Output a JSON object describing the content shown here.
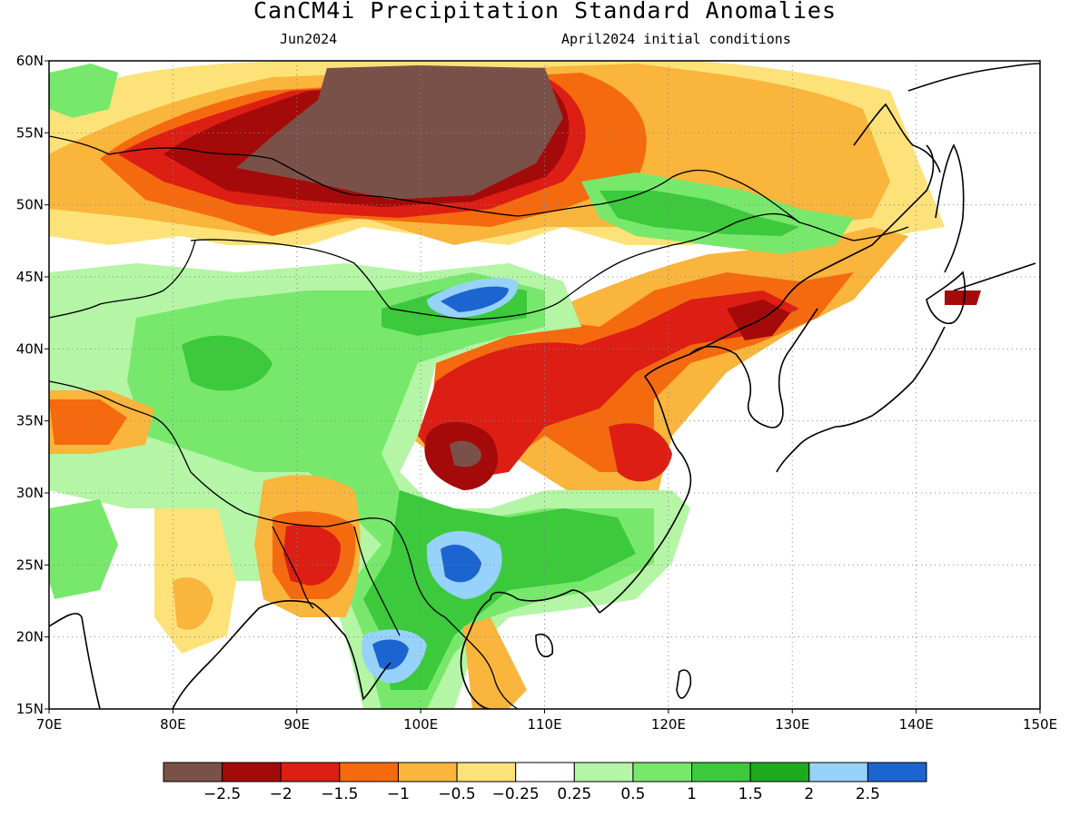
{
  "title": "CanCM4i Precipitation Standard Anomalies",
  "subtitle_left": "Jun2024",
  "subtitle_right": "April2024 initial conditions",
  "axes": {
    "lon_labels": [
      "70E",
      "80E",
      "90E",
      "100E",
      "110E",
      "120E",
      "130E",
      "140E",
      "150E"
    ],
    "lat_labels": [
      "15N",
      "20N",
      "25N",
      "30N",
      "35N",
      "40N",
      "45N",
      "50N",
      "55N",
      "60N"
    ],
    "lon_range": [
      70,
      150
    ],
    "lat_range": [
      15,
      60
    ],
    "grid": "dotted"
  },
  "colorbar": {
    "colors": [
      "#7a5148",
      "#a50a0a",
      "#dc1e14",
      "#f56a0f",
      "#f9b53c",
      "#fde27a",
      "#ffffff",
      "#b4f5a6",
      "#78e86c",
      "#3cc93c",
      "#1eaa1e",
      "#96d2fa",
      "#1c64d0"
    ],
    "labels": [
      "−2.5",
      "−2",
      "−1.5",
      "−1",
      "−0.5",
      "−0.25",
      "0.25",
      "0.5",
      "1",
      "1.5",
      "2",
      "2.5"
    ]
  }
}
